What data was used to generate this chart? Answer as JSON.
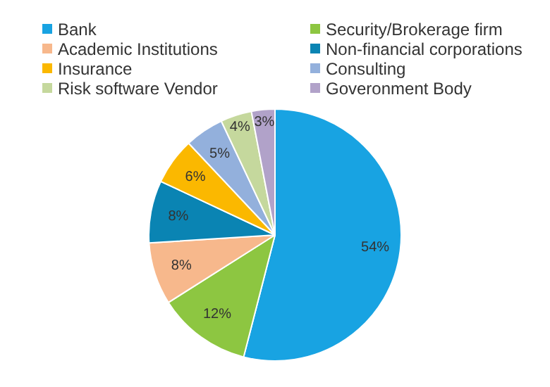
{
  "chart_data": {
    "type": "pie",
    "categories": [
      "Bank",
      "Security/Brokerage firm",
      "Academic Institutions",
      "Non-financial corporations",
      "Insurance",
      "Consulting",
      "Risk software Vendor",
      "Goveronment Body"
    ],
    "values": [
      54,
      12,
      8,
      8,
      6,
      5,
      4,
      3
    ],
    "colors": [
      "#18a3e2",
      "#8dc641",
      "#f7b88c",
      "#0a84b3",
      "#fbb800",
      "#93b0dc",
      "#c5d89d",
      "#b1a2c9"
    ],
    "value_labels": [
      "54%",
      "12%",
      "8%",
      "8%",
      "6%",
      "5%",
      "4%",
      "3%"
    ],
    "legend": "top"
  }
}
